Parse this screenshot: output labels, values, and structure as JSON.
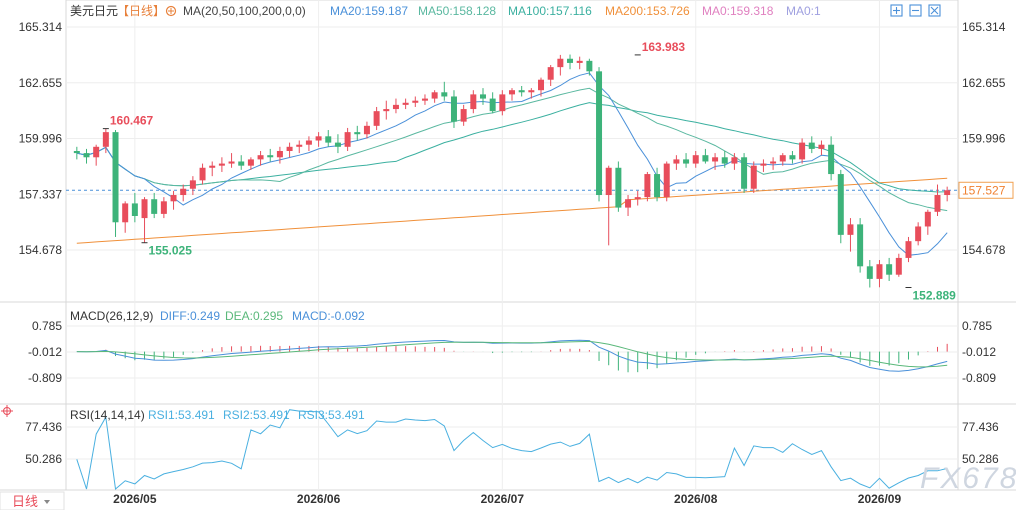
{
  "header": {
    "symbol": "美元日元",
    "period": "【日线】",
    "ma_label": "MA(20,50,100,200,0,0)",
    "ma20": "MA20:159.187",
    "ma50": "MA50:158.128",
    "ma100": "MA100:157.116",
    "ma200": "MA200:153.726",
    "ma0a": "MA0:159.318",
    "ma0b": "MA0:1"
  },
  "macd_header": {
    "label": "MACD(26,12,9)",
    "diff": "DIFF:0.249",
    "dea": "DEA:0.295",
    "macd": "MACD:-0.092"
  },
  "rsi_header": {
    "label": "RSI(14,14,14)",
    "rsi1": "RSI1:53.491",
    "rsi2": "RSI2:53.491",
    "rsi3": "RSI3:53.491"
  },
  "footer": {
    "period_button": "日线",
    "watermark": "FX678"
  },
  "colors": {
    "up": "#e84d5b",
    "down": "#3db37a",
    "ma20": "#4a90d9",
    "ma50": "#5ab8a0",
    "ma100": "#3bb0a0",
    "ma200": "#f0903a",
    "diff": "#4a90d9",
    "dea": "#5ab87a",
    "rsi": "#4ab0e0",
    "current": "#4a90d9"
  },
  "chart_data": {
    "type": "candlestick",
    "price_axis": {
      "ticks": [
        165.314,
        162.655,
        159.996,
        157.337,
        154.678
      ],
      "labels": [
        "165.314",
        "162.655",
        "159.996",
        "157.337",
        "154.678"
      ]
    },
    "macd_axis": {
      "ticks": [
        0.785,
        -0.012,
        -0.809
      ],
      "labels": [
        "0.785",
        "-0.012",
        "-0.809"
      ]
    },
    "rsi_axis": {
      "ticks": [
        77.436,
        50.286
      ],
      "labels": [
        "77.436",
        "50.286"
      ]
    },
    "x_labels": [
      "2026/05",
      "2026/06",
      "2026/07",
      "2026/08",
      "2026/09"
    ],
    "x_label_index": [
      6,
      25,
      44,
      64,
      83
    ],
    "current_price": 157.527,
    "current_price_label": "157.527",
    "annotations": [
      {
        "text": "160.467",
        "index": 3,
        "value": 160.467,
        "kind": "high"
      },
      {
        "text": "163.983",
        "index": 58,
        "value": 163.983,
        "kind": "high"
      },
      {
        "text": "155.025",
        "index": 7,
        "value": 155.025,
        "kind": "low"
      },
      {
        "text": "152.889",
        "index": 86,
        "value": 152.889,
        "kind": "low"
      }
    ],
    "candles": [
      [
        159.4,
        159.6,
        159.0,
        159.3
      ],
      [
        159.3,
        159.5,
        158.8,
        159.1
      ],
      [
        159.1,
        159.7,
        158.7,
        159.6
      ],
      [
        159.6,
        160.467,
        159.3,
        160.3
      ],
      [
        160.3,
        160.4,
        155.3,
        156.0
      ],
      [
        156.0,
        157.0,
        155.5,
        156.9
      ],
      [
        156.9,
        157.4,
        156.0,
        156.3
      ],
      [
        156.2,
        157.2,
        155.025,
        157.1
      ],
      [
        157.1,
        157.4,
        156.2,
        156.4
      ],
      [
        156.4,
        157.2,
        156.2,
        157.0
      ],
      [
        157.0,
        157.5,
        156.6,
        157.3
      ],
      [
        157.3,
        157.8,
        157.0,
        157.6
      ],
      [
        157.6,
        158.2,
        157.3,
        158.0
      ],
      [
        158.0,
        158.8,
        157.8,
        158.6
      ],
      [
        158.6,
        158.9,
        158.2,
        158.7
      ],
      [
        158.7,
        159.1,
        158.4,
        158.8
      ],
      [
        158.8,
        159.3,
        158.6,
        158.9
      ],
      [
        158.9,
        159.2,
        158.5,
        158.7
      ],
      [
        158.7,
        159.1,
        158.5,
        159.0
      ],
      [
        159.0,
        159.4,
        158.7,
        159.2
      ],
      [
        159.2,
        159.5,
        158.9,
        159.1
      ],
      [
        159.1,
        159.6,
        158.8,
        159.4
      ],
      [
        159.4,
        159.8,
        159.1,
        159.6
      ],
      [
        159.6,
        159.9,
        159.3,
        159.7
      ],
      [
        159.7,
        160.1,
        159.4,
        159.9
      ],
      [
        159.9,
        160.3,
        159.6,
        160.1
      ],
      [
        160.1,
        160.4,
        159.6,
        159.8
      ],
      [
        159.8,
        160.2,
        159.3,
        159.6
      ],
      [
        159.6,
        160.5,
        159.4,
        160.3
      ],
      [
        160.3,
        160.6,
        159.9,
        160.2
      ],
      [
        160.2,
        160.8,
        160.0,
        160.6
      ],
      [
        160.6,
        161.5,
        160.4,
        161.3
      ],
      [
        161.3,
        161.8,
        160.9,
        161.4
      ],
      [
        161.4,
        161.9,
        161.2,
        161.6
      ],
      [
        161.6,
        161.9,
        161.4,
        161.7
      ],
      [
        161.7,
        162.0,
        161.5,
        161.8
      ],
      [
        161.8,
        162.1,
        161.6,
        161.9
      ],
      [
        161.9,
        162.3,
        161.7,
        162.2
      ],
      [
        162.2,
        162.7,
        161.8,
        162.0
      ],
      [
        162.0,
        162.3,
        160.5,
        160.8
      ],
      [
        160.8,
        161.6,
        160.6,
        161.4
      ],
      [
        161.4,
        162.3,
        161.2,
        162.1
      ],
      [
        162.1,
        162.4,
        161.6,
        161.9
      ],
      [
        161.9,
        162.2,
        161.2,
        161.3
      ],
      [
        161.3,
        162.3,
        161.1,
        162.1
      ],
      [
        162.1,
        162.4,
        161.8,
        162.3
      ],
      [
        162.3,
        162.5,
        162.0,
        162.2
      ],
      [
        162.2,
        162.4,
        161.9,
        162.3
      ],
      [
        162.3,
        162.9,
        162.0,
        162.8
      ],
      [
        162.8,
        163.5,
        162.5,
        163.4
      ],
      [
        163.4,
        163.983,
        163.0,
        163.8
      ],
      [
        163.8,
        164.0,
        163.3,
        163.6
      ],
      [
        163.6,
        163.9,
        163.3,
        163.7
      ],
      [
        163.7,
        163.8,
        163.0,
        163.2
      ],
      [
        163.2,
        163.4,
        157.0,
        157.3
      ],
      [
        157.3,
        158.7,
        154.9,
        158.6
      ],
      [
        158.6,
        158.9,
        156.5,
        156.7
      ],
      [
        156.7,
        157.3,
        156.3,
        157.1
      ],
      [
        157.1,
        157.5,
        156.8,
        157.2
      ],
      [
        157.2,
        158.4,
        157.0,
        158.3
      ],
      [
        158.3,
        158.6,
        157.0,
        157.2
      ],
      [
        157.2,
        158.9,
        157.0,
        158.8
      ],
      [
        158.8,
        159.2,
        158.5,
        159.0
      ],
      [
        159.0,
        159.3,
        158.6,
        158.8
      ],
      [
        158.8,
        159.4,
        158.6,
        159.2
      ],
      [
        159.2,
        159.5,
        158.8,
        158.9
      ],
      [
        158.9,
        159.3,
        158.5,
        159.1
      ],
      [
        159.1,
        159.4,
        158.6,
        158.8
      ],
      [
        158.8,
        159.3,
        158.5,
        159.1
      ],
      [
        159.1,
        159.3,
        157.4,
        157.6
      ],
      [
        157.6,
        158.9,
        157.4,
        158.7
      ],
      [
        158.7,
        159.0,
        158.4,
        158.8
      ],
      [
        158.8,
        159.1,
        158.5,
        158.9
      ],
      [
        158.9,
        159.3,
        158.7,
        159.2
      ],
      [
        159.2,
        159.4,
        158.8,
        159.0
      ],
      [
        159.0,
        160.0,
        158.8,
        159.8
      ],
      [
        159.8,
        160.1,
        159.3,
        159.5
      ],
      [
        159.5,
        159.9,
        159.2,
        159.7
      ],
      [
        159.7,
        160.1,
        158.0,
        158.3
      ],
      [
        158.3,
        158.5,
        155.0,
        155.4
      ],
      [
        155.4,
        156.2,
        154.6,
        155.9
      ],
      [
        155.9,
        156.2,
        153.6,
        153.9
      ],
      [
        153.9,
        154.2,
        152.889,
        153.3
      ],
      [
        153.3,
        154.2,
        152.9,
        154.0
      ],
      [
        154.0,
        154.3,
        153.2,
        153.5
      ],
      [
        153.5,
        154.5,
        153.4,
        154.3
      ],
      [
        154.3,
        155.3,
        154.1,
        155.1
      ],
      [
        155.1,
        156.0,
        154.9,
        155.8
      ],
      [
        155.8,
        156.6,
        155.4,
        156.5
      ],
      [
        156.5,
        157.8,
        156.3,
        157.3
      ],
      [
        157.3,
        157.7,
        157.0,
        157.527
      ]
    ]
  }
}
